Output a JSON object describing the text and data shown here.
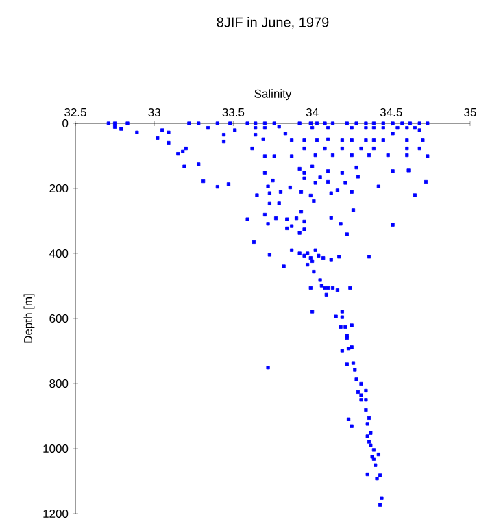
{
  "chart_data": {
    "type": "scatter",
    "title": "8JIF in June, 1979",
    "xlabel": "Salinity",
    "ylabel": "Depth [m]",
    "xlim": [
      32.5,
      35
    ],
    "xticks": [
      32.5,
      33,
      33.5,
      34,
      34.5,
      35
    ],
    "ylim": [
      1200,
      0
    ],
    "yticks": [
      0,
      200,
      400,
      600,
      800,
      1000,
      1200
    ],
    "grid": false,
    "marker": "square",
    "series": [
      {
        "color": "#0000ff",
        "x": [
          32.71,
          32.75,
          32.83,
          33.22,
          33.28,
          33.4,
          33.48,
          33.59,
          33.64,
          33.7,
          33.76,
          33.92,
          33.99,
          34.03,
          34.08,
          34.13,
          34.22,
          34.28,
          34.34,
          34.39,
          34.45,
          34.51,
          34.57,
          34.62,
          34.68,
          34.73,
          32.75,
          32.79,
          32.89,
          33.05,
          33.09,
          33.34,
          33.44,
          33.51,
          33.64,
          33.7,
          33.79,
          34.0,
          34.1,
          34.25,
          34.34,
          34.39,
          34.45,
          34.54,
          34.6,
          34.65,
          34.68,
          33.02,
          33.09,
          33.44,
          33.64,
          33.69,
          33.83,
          33.87,
          33.95,
          34.03,
          34.1,
          34.19,
          34.25,
          34.34,
          34.39,
          34.45,
          34.6,
          34.7,
          34.51,
          33.15,
          33.18,
          33.2,
          33.62,
          33.7,
          33.76,
          33.87,
          33.95,
          34.02,
          34.08,
          34.13,
          34.19,
          34.25,
          34.31,
          34.36,
          34.39,
          34.48,
          34.6,
          34.6,
          34.68,
          34.73,
          33.19,
          33.28,
          33.7,
          33.92,
          33.95,
          34.0,
          34.05,
          34.1,
          34.19,
          34.28,
          34.51,
          34.61,
          33.31,
          33.4,
          33.47,
          33.75,
          33.72,
          33.86,
          33.95,
          34.02,
          34.1,
          34.16,
          34.21,
          34.29,
          34.42,
          34.72,
          33.65,
          33.8,
          33.73,
          33.93,
          33.99,
          34.25,
          33.79,
          34.01,
          34.65,
          34.12,
          33.73,
          33.93,
          34.26,
          33.7,
          33.59,
          33.72,
          33.77,
          33.84,
          33.87,
          33.9,
          33.95,
          34.12,
          34.18,
          34.51,
          33.84,
          33.92,
          33.95,
          34.22,
          33.63,
          33.73,
          33.87,
          33.92,
          33.95,
          33.97,
          33.99,
          34.0,
          33.97,
          34.04,
          34.07,
          34.12,
          34.17,
          34.02,
          34.36,
          33.82,
          34.01,
          34.05,
          34.06,
          34.08,
          34.1,
          34.13,
          34.16,
          34.09,
          33.99,
          34.24,
          34.0,
          34.19,
          34.15,
          34.19,
          34.25,
          34.18,
          34.21,
          34.22,
          34.22,
          34.25,
          34.23,
          34.19,
          34.22,
          34.26,
          34.27,
          33.72,
          34.28,
          34.31,
          34.29,
          34.31,
          34.34,
          34.34,
          34.31,
          34.34,
          34.36,
          34.23,
          34.25,
          34.35,
          34.35,
          34.37,
          34.36,
          34.37,
          34.39,
          34.38,
          34.39,
          34.42,
          34.4,
          34.35,
          34.43,
          34.41,
          34.44,
          34.43
        ],
        "values": [
          0,
          0,
          0,
          0,
          0,
          0,
          0,
          0,
          0,
          0,
          0,
          0,
          0,
          0,
          0,
          0,
          0,
          0,
          0,
          0,
          0,
          0,
          0,
          0,
          0,
          0,
          11,
          17,
          28,
          21,
          28,
          14,
          35,
          21,
          14,
          14,
          10,
          14,
          14,
          14,
          14,
          14,
          14,
          14,
          14,
          14,
          21,
          45,
          60,
          56,
          35,
          49,
          31,
          52,
          52,
          52,
          49,
          52,
          52,
          52,
          52,
          52,
          52,
          52,
          31,
          94,
          87,
          77,
          77,
          101,
          101,
          101,
          77,
          98,
          77,
          98,
          77,
          98,
          77,
          98,
          77,
          98,
          77,
          98,
          77,
          101,
          133,
          126,
          152,
          140,
          152,
          133,
          166,
          147,
          152,
          136,
          147,
          145,
          178,
          195,
          187,
          176,
          194,
          197,
          169,
          183,
          180,
          206,
          183,
          164,
          194,
          180,
          221,
          211,
          215,
          211,
          222,
          211,
          246,
          239,
          221,
          215,
          247,
          271,
          267,
          281,
          295,
          309,
          292,
          295,
          316,
          292,
          302,
          291,
          309,
          312,
          323,
          337,
          326,
          341,
          365,
          404,
          390,
          400,
          407,
          400,
          414,
          424,
          435,
          407,
          414,
          419,
          410,
          390,
          410,
          440,
          456,
          482,
          499,
          506,
          506,
          506,
          513,
          527,
          506,
          506,
          579,
          579,
          594,
          596,
          621,
          626,
          626,
          653,
          660,
          688,
          692,
          699,
          741,
          737,
          758,
          751,
          787,
          801,
          826,
          836,
          822,
          850,
          850,
          881,
          906,
          910,
          931,
          924,
          962,
          952,
          979,
          990,
          1004,
          1025,
          1032,
          1018,
          1051,
          1079,
          1082,
          1092,
          1152,
          1173
        ]
      }
    ]
  }
}
